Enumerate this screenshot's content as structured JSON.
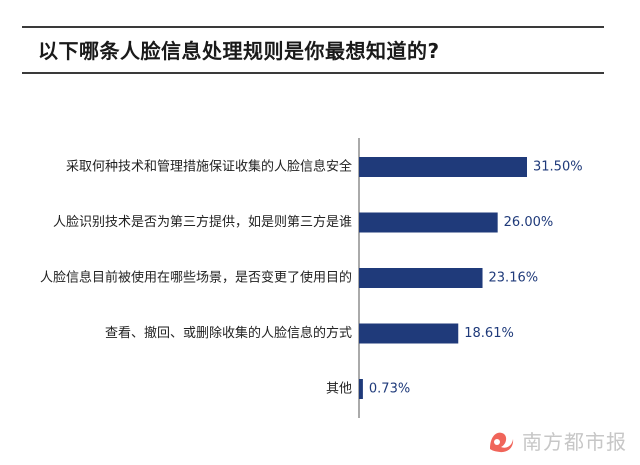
{
  "title": "以下哪条人脸信息处理规则是你最想知道的?",
  "brand": "南方都市报",
  "colors": {
    "bar": "#1f3a7a",
    "axis": "#555555",
    "brand_accent": "#f0655a"
  },
  "chart_data": {
    "type": "bar",
    "orientation": "horizontal",
    "categories": [
      "采取何种技术和管理措施保证收集的人脸信息安全",
      "人脸识别技术是否为第三方提供，如是则第三方是谁",
      "人脸信息目前被使用在哪些场景，是否变更了使用目的",
      "查看、撤回、或删除收集的人脸信息的方式",
      "其他"
    ],
    "values": [
      31.5,
      26.0,
      23.16,
      18.61,
      0.73
    ],
    "value_labels": [
      "31.50%",
      "26.00%",
      "23.16%",
      "18.61%",
      "0.73%"
    ],
    "unit": "%",
    "xlim": [
      0,
      50
    ],
    "grid": false,
    "legend": "none"
  }
}
